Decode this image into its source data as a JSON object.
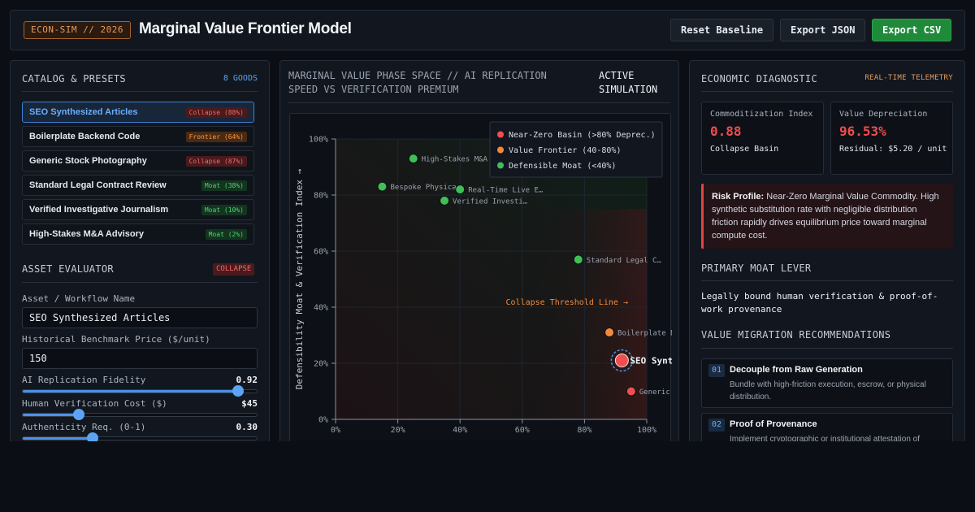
{
  "header": {
    "badge": "ECON-SIM // 2026",
    "title": "Marginal Value Frontier Model",
    "buttons": {
      "reset": "Reset Baseline",
      "json": "Export JSON",
      "csv": "Export CSV"
    }
  },
  "catalog": {
    "title": "CATALOG & PRESETS",
    "count": "8 GOODS",
    "items": [
      {
        "name": "SEO Synthesized Articles",
        "tag": "Collapse (88%)",
        "status": "collapse",
        "active": true
      },
      {
        "name": "Boilerplate Backend Code",
        "tag": "Frontier (64%)",
        "status": "frontier"
      },
      {
        "name": "Generic Stock Photography",
        "tag": "Collapse (87%)",
        "status": "collapse"
      },
      {
        "name": "Standard Legal Contract Review",
        "tag": "Moat (38%)",
        "status": "moat"
      },
      {
        "name": "Verified Investigative Journalism",
        "tag": "Moat (10%)",
        "status": "moat"
      },
      {
        "name": "High-Stakes M&A Advisory",
        "tag": "Moat (2%)",
        "status": "moat"
      }
    ]
  },
  "evaluator": {
    "title": "ASSET EVALUATOR",
    "badge": "COLLAPSE",
    "name_label": "Asset / Workflow Name",
    "name_value": "SEO Synthesized Articles",
    "price_label": "Historical Benchmark Price ($/unit)",
    "price_value": "150",
    "sliders": [
      {
        "label": "AI Replication Fidelity",
        "display": "0.92",
        "fraction": 0.92
      },
      {
        "label": "Human Verification Cost ($)",
        "display": "$45",
        "fraction": 0.24
      },
      {
        "label": "Authenticity Req. (0-1)",
        "display": "0.30",
        "fraction": 0.3
      }
    ]
  },
  "simulation": {
    "title_line1": "MARGINAL VALUE PHASE SPACE // AI REPLICATION",
    "title_line2": "SPEED VS VERIFICATION PREMIUM",
    "status_line1": "ACTIVE",
    "status_line2": "SIMULATION"
  },
  "chart_data": {
    "type": "scatter",
    "ylabel": "Defensibility Moat & Verification Index →",
    "xlim": [
      0,
      100
    ],
    "ylim": [
      0,
      100
    ],
    "xticks": [
      "0%",
      "20%",
      "40%",
      "60%",
      "80%",
      "100%"
    ],
    "yticks": [
      "0%",
      "20%",
      "40%",
      "60%",
      "80%",
      "100%"
    ],
    "grid": true,
    "legend_position": "top-right",
    "legend": [
      {
        "label": "Near-Zero Basin (>80% Deprec.)",
        "color": "#ef4f4f"
      },
      {
        "label": "Value Frontier (40-80%)",
        "color": "#f28a3e"
      },
      {
        "label": "Defensible Moat (<40%)",
        "color": "#3fbf55"
      }
    ],
    "threshold_label": "Collapse Threshold Line →",
    "points": [
      {
        "label": "High-Stakes M&A",
        "x": 25,
        "y": 93,
        "zone": "moat"
      },
      {
        "label": "Bespoke Physica…",
        "x": 15,
        "y": 83,
        "zone": "moat"
      },
      {
        "label": "Real-Time Live E…",
        "x": 40,
        "y": 82,
        "zone": "moat"
      },
      {
        "label": "Verified Investi…",
        "x": 35,
        "y": 78,
        "zone": "moat"
      },
      {
        "label": "Standard Legal C…",
        "x": 78,
        "y": 57,
        "zone": "moat"
      },
      {
        "label": "Boilerplate B",
        "x": 88,
        "y": 31,
        "zone": "frontier"
      },
      {
        "label": "SEO Synt",
        "x": 92,
        "y": 21,
        "zone": "collapse",
        "active": true
      },
      {
        "label": "Generic",
        "x": 95,
        "y": 10,
        "zone": "collapse"
      }
    ]
  },
  "diagnostic": {
    "title": "ECONOMIC DIAGNOSTIC",
    "badge": "REAL-TIME TELEMETRY",
    "commoditization": {
      "label": "Commoditization Index",
      "value": "0.88",
      "sub": "Collapse Basin"
    },
    "depreciation": {
      "label": "Value Depreciation",
      "value": "96.53%",
      "sub": "Residual: $5.20 / unit"
    },
    "risk_label": "Risk Profile:",
    "risk_text": "Near-Zero Marginal Value Commodity. High synthetic substitution rate with negligible distribution friction rapidly drives equilibrium price toward marginal compute cost.",
    "moat_title": "PRIMARY MOAT LEVER",
    "moat_text": "Legally bound human verification & proof-of-work provenance",
    "rec_title": "VALUE MIGRATION RECOMMENDATIONS",
    "recommendations": [
      {
        "num": "01",
        "title": "Decouple from Raw Generation",
        "desc": "Bundle with high-friction execution, escrow, or physical distribution."
      },
      {
        "num": "02",
        "title": "Proof of Provenance",
        "desc": "Implement cryptographic or institutional attestation of"
      }
    ]
  }
}
